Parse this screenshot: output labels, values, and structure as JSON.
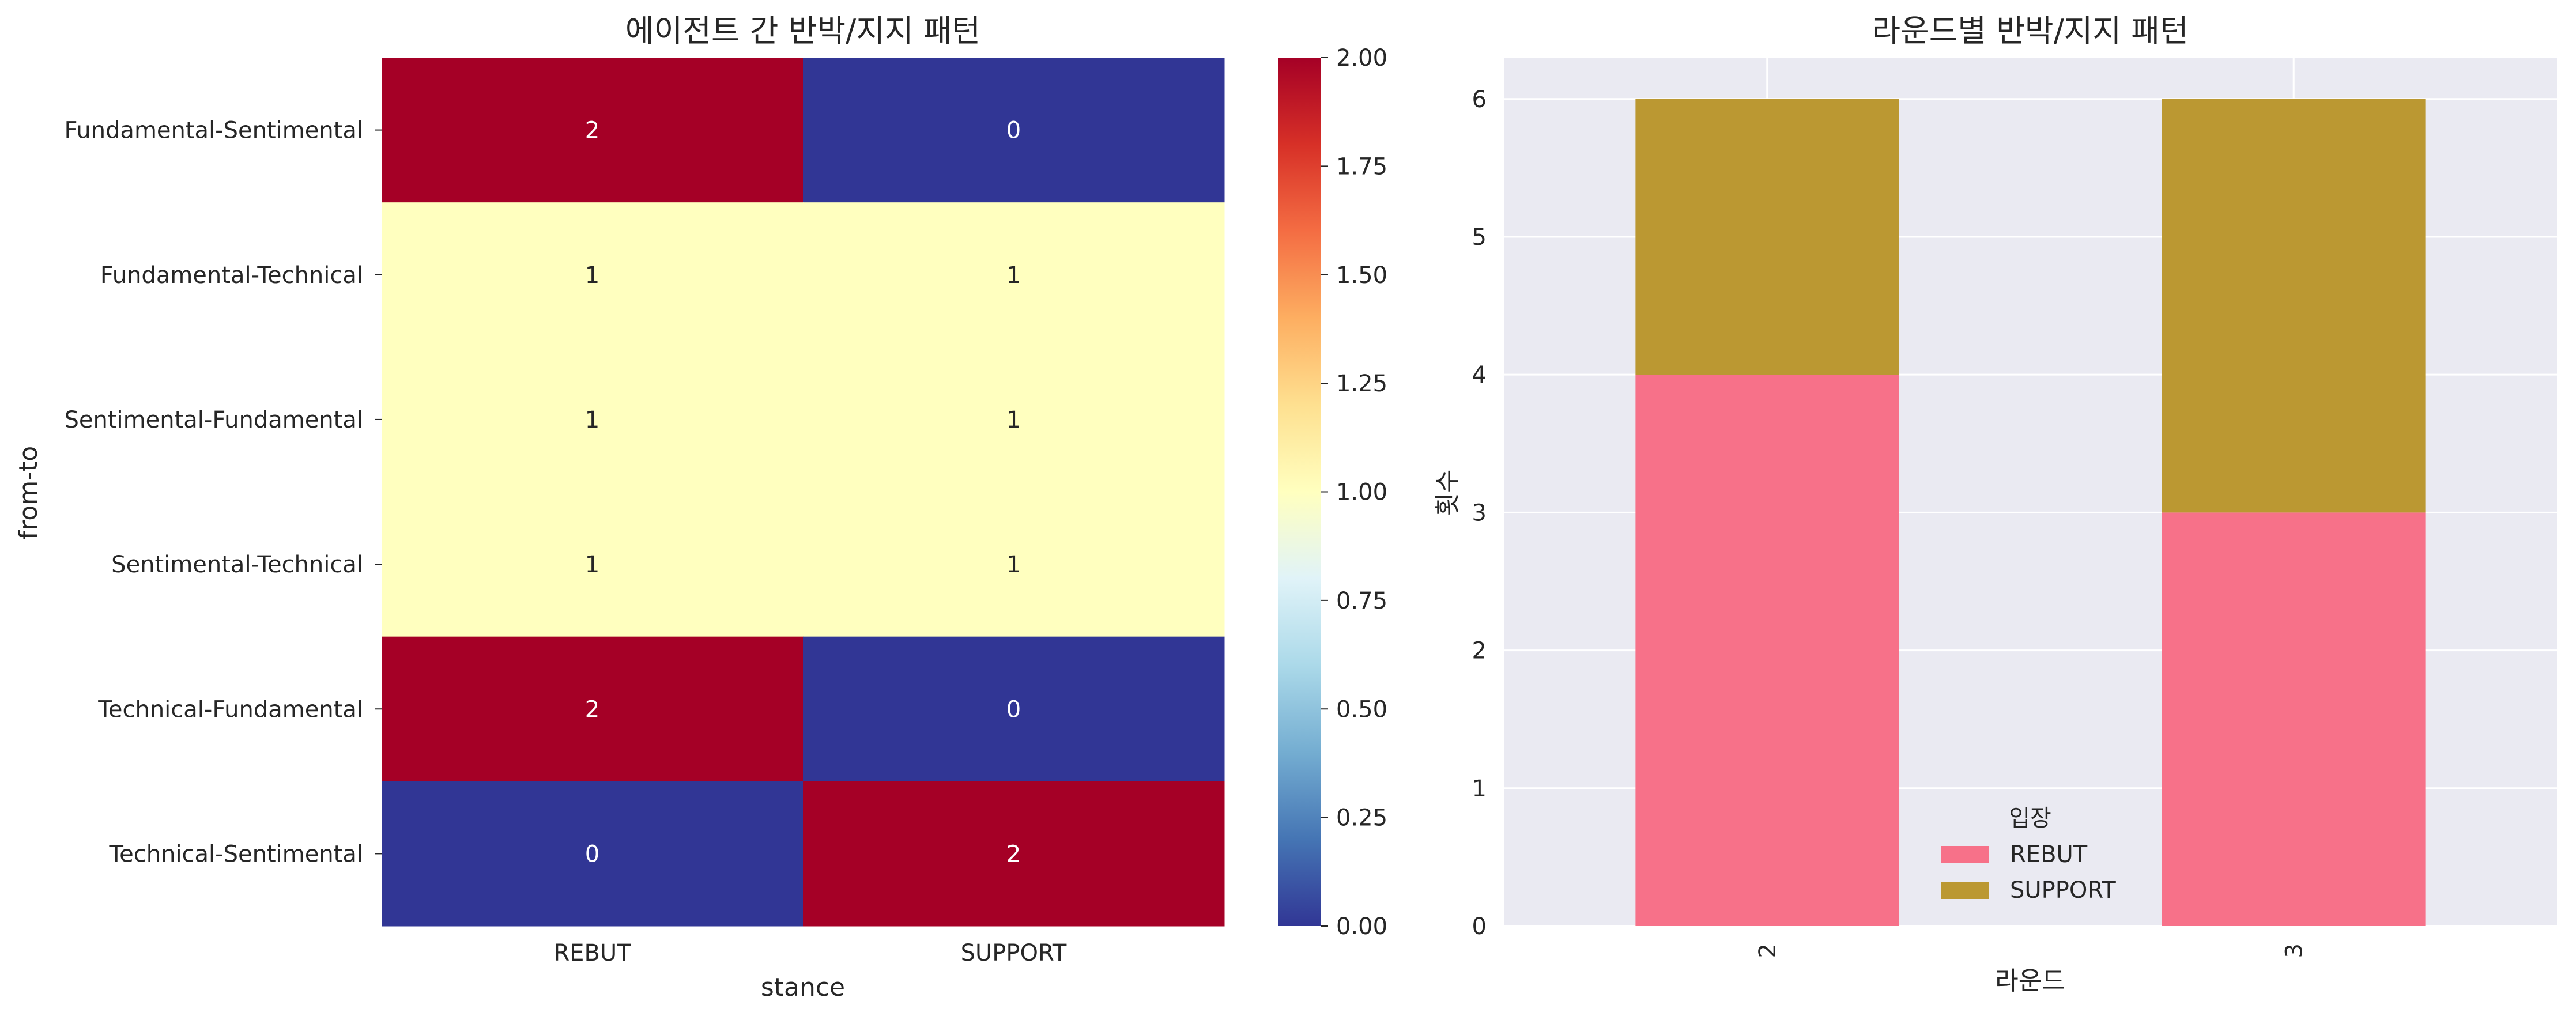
{
  "colors": {
    "cmap": [
      "#313695",
      "#4575b4",
      "#74add1",
      "#abd9e9",
      "#e0f3f8",
      "#ffffbf",
      "#fee090",
      "#fdae61",
      "#f46d43",
      "#d73027",
      "#a50026"
    ],
    "rebut": "#f77189",
    "support": "#bb9832",
    "plot_bg": "#eaeaf2",
    "grid": "#ffffff"
  },
  "chart_data": [
    {
      "type": "heatmap",
      "title": "에이전트 간 반박/지지 패턴",
      "xlabel": "stance",
      "ylabel": "from-to",
      "x_categories": [
        "REBUT",
        "SUPPORT"
      ],
      "y_categories": [
        "Fundamental-Sentimental",
        "Fundamental-Technical",
        "Sentimental-Fundamental",
        "Sentimental-Technical",
        "Technical-Fundamental",
        "Technical-Sentimental"
      ],
      "values": [
        [
          2,
          0
        ],
        [
          1,
          1
        ],
        [
          1,
          1
        ],
        [
          1,
          1
        ],
        [
          2,
          0
        ],
        [
          0,
          2
        ]
      ],
      "colorbar": {
        "range": [
          0,
          2
        ],
        "ticks": [
          "0.00",
          "0.25",
          "0.50",
          "0.75",
          "1.00",
          "1.25",
          "1.50",
          "1.75",
          "2.00"
        ]
      }
    },
    {
      "type": "bar",
      "stacked": true,
      "title": "라운드별 반박/지지 패턴",
      "xlabel": "라운드",
      "ylabel": "횟수",
      "categories": [
        "2",
        "3"
      ],
      "series": [
        {
          "name": "REBUT",
          "values": [
            4,
            3
          ]
        },
        {
          "name": "SUPPORT",
          "values": [
            2,
            3
          ]
        }
      ],
      "ylim": [
        0,
        6.3
      ],
      "yticks": [
        "0",
        "1",
        "2",
        "3",
        "4",
        "5",
        "6"
      ],
      "legend": {
        "title": "입장",
        "position": "lower-center"
      },
      "grid": true
    }
  ]
}
